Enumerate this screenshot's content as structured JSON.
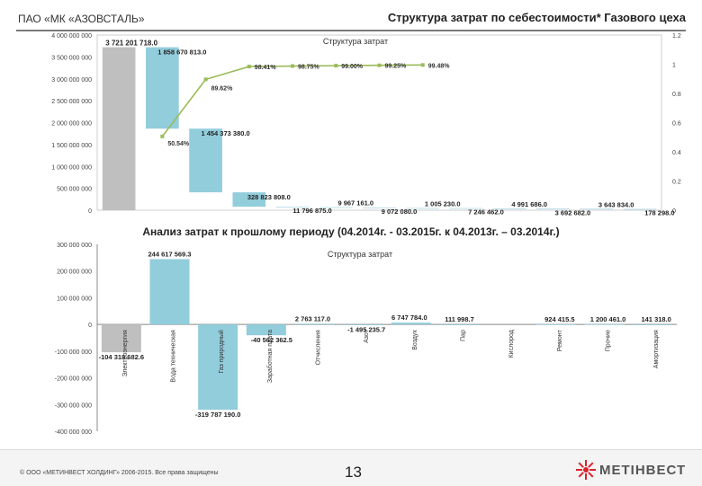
{
  "header": {
    "company": "ПАО «МК «АЗОВСТАЛЬ»",
    "title": "Структура затрат по себестоимости* Газового цеха"
  },
  "section_title": "Анализ затрат к прошлому периоду (04.2014г. - 03.2015г. к 04.2013г. – 03.2014г.)",
  "footer": {
    "copyright": "© ООО «МЕТИНВЕСТ ХОЛДИНГ» 2006-2015. Все права защищены",
    "page_number": "13",
    "logo_text": "МЕТІНВЕСТ"
  },
  "colors": {
    "total_bar": "#bfbfbf",
    "component_bar": "#92cddc",
    "pareto_line": "#9bbb59"
  },
  "chart_data": [
    {
      "type": "bar",
      "title": "Структура затрат",
      "y_ticks": [
        "0",
        "500 000 000",
        "1 000 000 000",
        "1 500 000 000",
        "2 000 000 000",
        "2 500 000 000",
        "3 000 000 000",
        "3 500 000 000",
        "4 000 000 000"
      ],
      "y2_ticks": [
        "0",
        "0.2",
        "0.4",
        "0.6",
        "0.8",
        "1",
        "1.2"
      ],
      "ylim": [
        0,
        4000000000
      ],
      "y2lim": [
        0,
        1.2
      ],
      "total": 3721201718.0,
      "total_label": "3 721 201 718.0",
      "components": [
        1858670813.0,
        1454373380.0,
        328823808.0,
        11796875.0,
        9967161.0,
        9072080.0,
        1005230.0,
        7246462.0,
        4991686.0,
        3692682.0,
        3643834.0,
        178298.0
      ],
      "component_labels": [
        "1 858 670 813.0",
        "1 454 373 380.0",
        "328 823 808.0",
        "11 796 875.0",
        "9 967 161.0",
        "9 072 080.0",
        "1 005 230.0",
        "7 246 462.0",
        "4 991 686.0",
        "3 692 682.0",
        "3 643 834.0",
        "178 298.0"
      ],
      "cumulative_pct": [
        0.5054,
        0.8962,
        0.9841,
        0.9875,
        0.99,
        0.9925,
        0.9948
      ],
      "cumulative_labels": [
        "50.54%",
        "89.62%",
        "98.41%",
        "98.75%",
        "99.00%",
        "99.25%",
        "99.48%"
      ]
    },
    {
      "type": "bar",
      "title": "Структура затрат",
      "y_ticks": [
        "-400 000 000",
        "-300 000 000",
        "-200 000 000",
        "-100 000 000",
        "0",
        "100 000 000",
        "200 000 000",
        "300 000 000"
      ],
      "ylim": [
        -400000000,
        300000000
      ],
      "categories": [
        "Электроэнергия",
        "Вода техническая",
        "Газ природный",
        "Заработная плата",
        "Отчисления",
        "Азот",
        "Воздух",
        "Пар",
        "Кислород",
        "Ремонт",
        "Прочие",
        "Амортизация"
      ],
      "values": [
        -104318682.6,
        244617569.3,
        -319787190.0,
        -40562362.5,
        2763117.0,
        -1495235.7,
        6747784.0,
        111998.7,
        0,
        924415.5,
        1200461.0,
        141318.0
      ],
      "value_labels": [
        "-104 318 682.6",
        "244 617 569.3",
        "-319 787 190.0",
        "-40 562 362.5",
        "2 763 117.0",
        "-1 495 235.7",
        "6 747 784.0",
        "111 998.7",
        "",
        "924 415.5",
        "1 200 461.0",
        "141 318.0"
      ]
    }
  ]
}
